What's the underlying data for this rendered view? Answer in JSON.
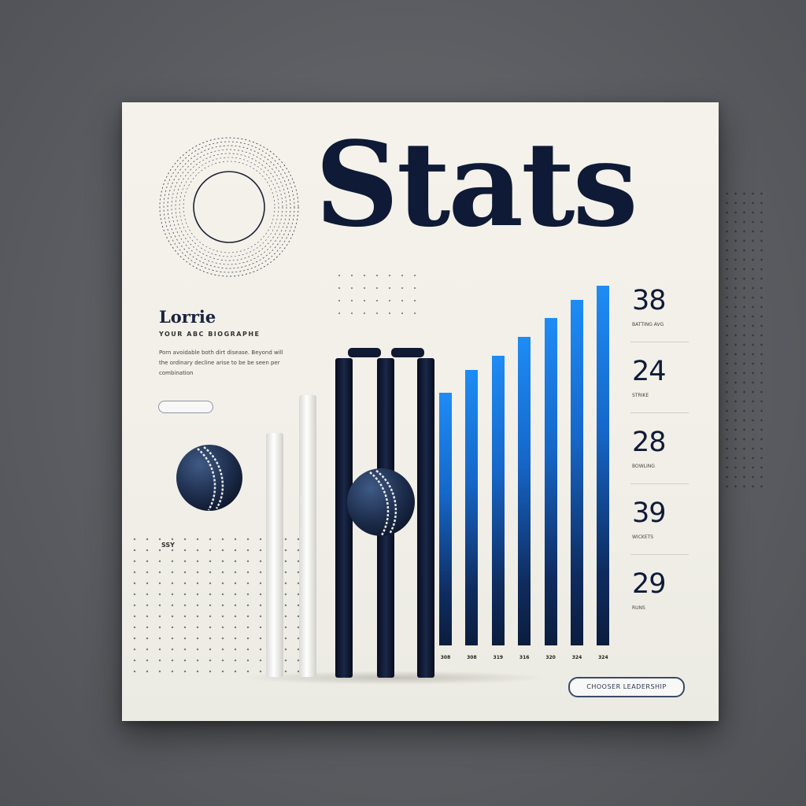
{
  "poster": {
    "title": "Stats",
    "ring_label": "",
    "side_title": "Lorrie",
    "side_subtitle": "YOUR ABC BIOGRAPHE",
    "side_body": "Porn avoidable both dirt disease. Beyond will the ordinary decline arise to be be seen per combination",
    "side_pill": "",
    "dot_label": "SSY",
    "cta_label": "CHOOSER LEADERSHIP"
  },
  "chart_data": {
    "type": "bar",
    "categories": [
      "",
      "",
      "",
      "",
      "",
      "",
      ""
    ],
    "values": [
      54,
      59,
      62,
      66,
      70,
      74,
      77
    ],
    "tick_labels": [
      "308",
      "308",
      "319",
      "316",
      "320",
      "324",
      "324"
    ],
    "ylim": [
      0,
      80
    ]
  },
  "stats": [
    {
      "value": "38",
      "caption": "BATTING AVG"
    },
    {
      "value": "24",
      "caption": "STRIKE"
    },
    {
      "value": "28",
      "caption": "BOWLING"
    },
    {
      "value": "39",
      "caption": "WICKETS"
    },
    {
      "value": "29",
      "caption": "RUNS"
    }
  ],
  "colors": {
    "navy": "#0e1a36",
    "blue": "#1e8cf5",
    "paper": "#f4f2ea",
    "backdrop": "#5a5c61"
  },
  "icons": {
    "ring": "concentric-ring-icon",
    "ball": "cricket-ball-icon",
    "stumps": "cricket-stumps-icon"
  }
}
